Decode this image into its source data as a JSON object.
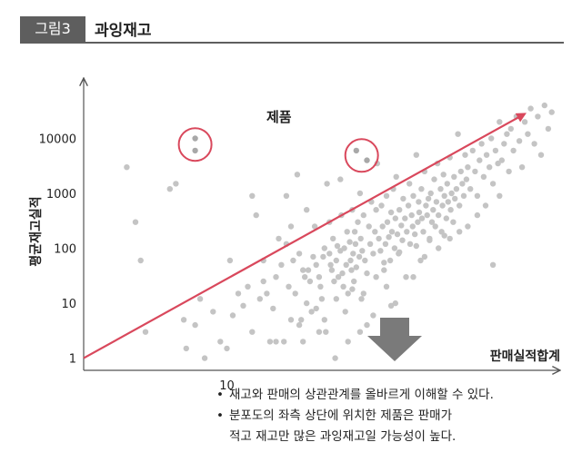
{
  "figure": {
    "tag": "그림3",
    "title": "과잉재고"
  },
  "notes": [
    {
      "bullet": "•",
      "text": "재고와 판매의 상관관계를 올바르게 이해할 수 있다."
    },
    {
      "bullet": "•",
      "text": "분포도의 좌측 상단에 위치한 제품은 판매가",
      "continuation": "적고 재고만 많은 과잉재고일 가능성이 높다."
    }
  ],
  "colors": {
    "trend": "#d9485c",
    "points": "#c4c4c4",
    "axis": "#555555",
    "down_arrow": "#7a7a7a"
  },
  "icons": {
    "down_arrow": "down-arrow-icon"
  },
  "chart_data": {
    "type": "scatter",
    "xlabel": "판매실적합계",
    "ylabel": "평균재고실적",
    "x_scale": "log",
    "y_scale": "log",
    "xlim": [
      1,
      2000
    ],
    "ylim": [
      0.6,
      100000
    ],
    "xticks": [
      {
        "value": 10,
        "label": "10"
      }
    ],
    "yticks": [
      {
        "value": 1,
        "label": "1"
      },
      {
        "value": 10,
        "label": "10"
      },
      {
        "value": 100,
        "label": "100"
      },
      {
        "value": 1000,
        "label": "1000"
      },
      {
        "value": 10000,
        "label": "10000"
      }
    ],
    "annotation": "제품",
    "highlighted_products": [
      {
        "x": 6,
        "y": 10000
      },
      {
        "x": 6,
        "y": 6000
      },
      {
        "x": 80,
        "y": 6000
      },
      {
        "x": 95,
        "y": 4000
      }
    ],
    "trend_line": {
      "from": {
        "x": 1,
        "y": 1
      },
      "to": {
        "x": 1200,
        "y": 28000
      }
    },
    "points": [
      {
        "x": 2,
        "y": 3000
      },
      {
        "x": 2.3,
        "y": 300
      },
      {
        "x": 2.5,
        "y": 60
      },
      {
        "x": 2.7,
        "y": 3
      },
      {
        "x": 4,
        "y": 1200
      },
      {
        "x": 4.4,
        "y": 1500
      },
      {
        "x": 5,
        "y": 5
      },
      {
        "x": 5.2,
        "y": 1.5
      },
      {
        "x": 6,
        "y": 4
      },
      {
        "x": 6.5,
        "y": 12
      },
      {
        "x": 7,
        "y": 1
      },
      {
        "x": 8,
        "y": 7
      },
      {
        "x": 9,
        "y": 2
      },
      {
        "x": 10,
        "y": 1.5
      },
      {
        "x": 10.5,
        "y": 60
      },
      {
        "x": 11,
        "y": 6
      },
      {
        "x": 12,
        "y": 15
      },
      {
        "x": 13,
        "y": 9
      },
      {
        "x": 14,
        "y": 20
      },
      {
        "x": 15,
        "y": 3
      },
      {
        "x": 16,
        "y": 400
      },
      {
        "x": 17,
        "y": 12
      },
      {
        "x": 18,
        "y": 25
      },
      {
        "x": 19,
        "y": 15
      },
      {
        "x": 20,
        "y": 2
      },
      {
        "x": 21,
        "y": 8
      },
      {
        "x": 22,
        "y": 30
      },
      {
        "x": 23,
        "y": 150
      },
      {
        "x": 24,
        "y": 50
      },
      {
        "x": 25,
        "y": 2
      },
      {
        "x": 26,
        "y": 900
      },
      {
        "x": 27,
        "y": 20
      },
      {
        "x": 28,
        "y": 5
      },
      {
        "x": 29,
        "y": 60
      },
      {
        "x": 30,
        "y": 15
      },
      {
        "x": 31,
        "y": 2200
      },
      {
        "x": 32,
        "y": 80
      },
      {
        "x": 33,
        "y": 5
      },
      {
        "x": 34,
        "y": 40
      },
      {
        "x": 35,
        "y": 30
      },
      {
        "x": 36,
        "y": 10
      },
      {
        "x": 37,
        "y": 40
      },
      {
        "x": 38,
        "y": 25
      },
      {
        "x": 39,
        "y": 7
      },
      {
        "x": 40,
        "y": 70
      },
      {
        "x": 41,
        "y": 250
      },
      {
        "x": 42,
        "y": 50
      },
      {
        "x": 44,
        "y": 30
      },
      {
        "x": 45,
        "y": 20
      },
      {
        "x": 46,
        "y": 12
      },
      {
        "x": 47,
        "y": 70
      },
      {
        "x": 48,
        "y": 100
      },
      {
        "x": 49,
        "y": 3
      },
      {
        "x": 50,
        "y": 1500
      },
      {
        "x": 52,
        "y": 80
      },
      {
        "x": 53,
        "y": 50
      },
      {
        "x": 54,
        "y": 40
      },
      {
        "x": 55,
        "y": 150
      },
      {
        "x": 56,
        "y": 25
      },
      {
        "x": 57,
        "y": 1
      },
      {
        "x": 58,
        "y": 60
      },
      {
        "x": 59,
        "y": 110
      },
      {
        "x": 60,
        "y": 30
      },
      {
        "x": 62,
        "y": 90
      },
      {
        "x": 63,
        "y": 400
      },
      {
        "x": 64,
        "y": 35
      },
      {
        "x": 65,
        "y": 20
      },
      {
        "x": 66,
        "y": 100
      },
      {
        "x": 67,
        "y": 7
      },
      {
        "x": 68,
        "y": 50
      },
      {
        "x": 69,
        "y": 200
      },
      {
        "x": 70,
        "y": 15
      },
      {
        "x": 72,
        "y": 130
      },
      {
        "x": 73,
        "y": 60
      },
      {
        "x": 74,
        "y": 40
      },
      {
        "x": 75,
        "y": 500
      },
      {
        "x": 76,
        "y": 80
      },
      {
        "x": 77,
        "y": 25
      },
      {
        "x": 78,
        "y": 200
      },
      {
        "x": 79,
        "y": 120
      },
      {
        "x": 80,
        "y": 45
      },
      {
        "x": 82,
        "y": 300
      },
      {
        "x": 84,
        "y": 70
      },
      {
        "x": 85,
        "y": 1000
      },
      {
        "x": 86,
        "y": 150
      },
      {
        "x": 87,
        "y": 12
      },
      {
        "x": 88,
        "y": 90
      },
      {
        "x": 90,
        "y": 400
      },
      {
        "x": 92,
        "y": 60
      },
      {
        "x": 95,
        "y": 4
      },
      {
        "x": 98,
        "y": 250
      },
      {
        "x": 100,
        "y": 120
      },
      {
        "x": 102,
        "y": 700
      },
      {
        "x": 105,
        "y": 80
      },
      {
        "x": 108,
        "y": 200
      },
      {
        "x": 110,
        "y": 30
      },
      {
        "x": 112,
        "y": 3500
      },
      {
        "x": 115,
        "y": 150
      },
      {
        "x": 118,
        "y": 90
      },
      {
        "x": 120,
        "y": 600
      },
      {
        "x": 122,
        "y": 250
      },
      {
        "x": 125,
        "y": 40
      },
      {
        "x": 128,
        "y": 120
      },
      {
        "x": 130,
        "y": 900
      },
      {
        "x": 132,
        "y": 300
      },
      {
        "x": 135,
        "y": 160
      },
      {
        "x": 138,
        "y": 60
      },
      {
        "x": 140,
        "y": 450
      },
      {
        "x": 142,
        "y": 200
      },
      {
        "x": 145,
        "y": 1200
      },
      {
        "x": 148,
        "y": 100
      },
      {
        "x": 150,
        "y": 350
      },
      {
        "x": 152,
        "y": 2000
      },
      {
        "x": 155,
        "y": 180
      },
      {
        "x": 158,
        "y": 80
      },
      {
        "x": 160,
        "y": 500
      },
      {
        "x": 165,
        "y": 260
      },
      {
        "x": 168,
        "y": 140
      },
      {
        "x": 170,
        "y": 800
      },
      {
        "x": 175,
        "y": 350
      },
      {
        "x": 178,
        "y": 30
      },
      {
        "x": 180,
        "y": 200
      },
      {
        "x": 185,
        "y": 600
      },
      {
        "x": 188,
        "y": 1500
      },
      {
        "x": 190,
        "y": 120
      },
      {
        "x": 195,
        "y": 400
      },
      {
        "x": 198,
        "y": 250
      },
      {
        "x": 200,
        "y": 900
      },
      {
        "x": 205,
        "y": 180
      },
      {
        "x": 210,
        "y": 5000
      },
      {
        "x": 215,
        "y": 300
      },
      {
        "x": 218,
        "y": 700
      },
      {
        "x": 220,
        "y": 450
      },
      {
        "x": 225,
        "y": 60
      },
      {
        "x": 228,
        "y": 1200
      },
      {
        "x": 230,
        "y": 350
      },
      {
        "x": 235,
        "y": 200
      },
      {
        "x": 240,
        "y": 2500
      },
      {
        "x": 245,
        "y": 600
      },
      {
        "x": 250,
        "y": 400
      },
      {
        "x": 255,
        "y": 800
      },
      {
        "x": 260,
        "y": 150
      },
      {
        "x": 265,
        "y": 1000
      },
      {
        "x": 270,
        "y": 300
      },
      {
        "x": 275,
        "y": 500
      },
      {
        "x": 280,
        "y": 1800
      },
      {
        "x": 285,
        "y": 250
      },
      {
        "x": 290,
        "y": 700
      },
      {
        "x": 295,
        "y": 3500
      },
      {
        "x": 300,
        "y": 400
      },
      {
        "x": 310,
        "y": 1200
      },
      {
        "x": 315,
        "y": 200
      },
      {
        "x": 320,
        "y": 600
      },
      {
        "x": 325,
        "y": 2200
      },
      {
        "x": 330,
        "y": 900
      },
      {
        "x": 340,
        "y": 350
      },
      {
        "x": 345,
        "y": 1500
      },
      {
        "x": 350,
        "y": 700
      },
      {
        "x": 360,
        "y": 4500
      },
      {
        "x": 365,
        "y": 500
      },
      {
        "x": 370,
        "y": 1000
      },
      {
        "x": 380,
        "y": 300
      },
      {
        "x": 385,
        "y": 2000
      },
      {
        "x": 390,
        "y": 800
      },
      {
        "x": 400,
        "y": 1200
      },
      {
        "x": 410,
        "y": 12000
      },
      {
        "x": 420,
        "y": 600
      },
      {
        "x": 430,
        "y": 2500
      },
      {
        "x": 440,
        "y": 1500
      },
      {
        "x": 450,
        "y": 900
      },
      {
        "x": 460,
        "y": 5000
      },
      {
        "x": 470,
        "y": 1800
      },
      {
        "x": 480,
        "y": 3000
      },
      {
        "x": 500,
        "y": 1200
      },
      {
        "x": 520,
        "y": 6000
      },
      {
        "x": 540,
        "y": 2500
      },
      {
        "x": 560,
        "y": 900
      },
      {
        "x": 580,
        "y": 4000
      },
      {
        "x": 600,
        "y": 8000
      },
      {
        "x": 620,
        "y": 2000
      },
      {
        "x": 650,
        "y": 5000
      },
      {
        "x": 680,
        "y": 3000
      },
      {
        "x": 700,
        "y": 10000
      },
      {
        "x": 720,
        "y": 1500
      },
      {
        "x": 750,
        "y": 6000
      },
      {
        "x": 780,
        "y": 3500
      },
      {
        "x": 800,
        "y": 20000
      },
      {
        "x": 830,
        "y": 4000
      },
      {
        "x": 860,
        "y": 8000
      },
      {
        "x": 900,
        "y": 12000
      },
      {
        "x": 930,
        "y": 2500
      },
      {
        "x": 960,
        "y": 15000
      },
      {
        "x": 1000,
        "y": 6000
      },
      {
        "x": 1050,
        "y": 25000
      },
      {
        "x": 1100,
        "y": 9000
      },
      {
        "x": 1150,
        "y": 3000
      },
      {
        "x": 1200,
        "y": 20000
      },
      {
        "x": 1260,
        "y": 12000
      },
      {
        "x": 1320,
        "y": 35000
      },
      {
        "x": 1400,
        "y": 8000
      },
      {
        "x": 1480,
        "y": 25000
      },
      {
        "x": 1560,
        "y": 5000
      },
      {
        "x": 1650,
        "y": 40000
      },
      {
        "x": 1750,
        "y": 15000
      },
      {
        "x": 1850,
        "y": 30000
      },
      {
        "x": 28,
        "y": 250
      },
      {
        "x": 36,
        "y": 500
      },
      {
        "x": 44,
        "y": 3
      },
      {
        "x": 52,
        "y": 300
      },
      {
        "x": 70,
        "y": 2
      },
      {
        "x": 90,
        "y": 15
      },
      {
        "x": 110,
        "y": 500
      },
      {
        "x": 130,
        "y": 20
      },
      {
        "x": 150,
        "y": 10
      },
      {
        "x": 170,
        "y": 2
      },
      {
        "x": 200,
        "y": 30
      },
      {
        "x": 240,
        "y": 70
      },
      {
        "x": 300,
        "y": 100
      },
      {
        "x": 360,
        "y": 150
      },
      {
        "x": 420,
        "y": 200
      },
      {
        "x": 480,
        "y": 250
      },
      {
        "x": 560,
        "y": 400
      },
      {
        "x": 640,
        "y": 600
      },
      {
        "x": 720,
        "y": 50
      },
      {
        "x": 800,
        "y": 900
      },
      {
        "x": 32,
        "y": 4
      },
      {
        "x": 42,
        "y": 8
      },
      {
        "x": 58,
        "y": 12
      },
      {
        "x": 75,
        "y": 18
      },
      {
        "x": 95,
        "y": 35
      },
      {
        "x": 125,
        "y": 55
      },
      {
        "x": 160,
        "y": 85
      },
      {
        "x": 210,
        "y": 110
      },
      {
        "x": 260,
        "y": 140
      },
      {
        "x": 330,
        "y": 170
      },
      {
        "x": 15,
        "y": 900
      },
      {
        "x": 18,
        "y": 60
      },
      {
        "x": 22,
        "y": 2
      },
      {
        "x": 26,
        "y": 120
      },
      {
        "x": 34,
        "y": 2
      },
      {
        "x": 48,
        "y": 5
      },
      {
        "x": 62,
        "y": 1800
      },
      {
        "x": 85,
        "y": 3
      },
      {
        "x": 105,
        "y": 6
      },
      {
        "x": 140,
        "y": 9
      }
    ]
  }
}
